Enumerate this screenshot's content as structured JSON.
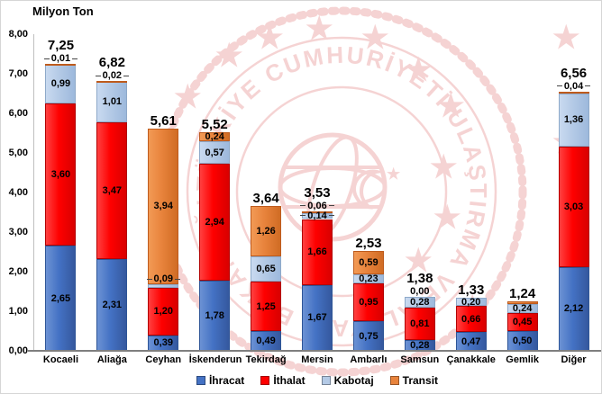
{
  "title": "Milyon Ton",
  "colors": {
    "ihracat": "#4472C4",
    "ithalat": "#FE0000",
    "kabotaj": "#B4CAE6",
    "transit": "#E8833C"
  },
  "watermark": {
    "text": "TÜRKİYE CUMHURİYETİ ULAŞTIRMA VE ALTYAPI BAKANLIĞI",
    "color": "#EDA9A9"
  },
  "y_axis": {
    "min": 0,
    "max": 8,
    "step": 1,
    "tick_labels": [
      "0,00",
      "1,00",
      "2,00",
      "3,00",
      "4,00",
      "5,00",
      "6,00",
      "7,00",
      "8,00"
    ]
  },
  "legend": [
    {
      "key": "ihracat",
      "label": "İhracat"
    },
    {
      "key": "ithalat",
      "label": "İthalat"
    },
    {
      "key": "kabotaj",
      "label": "Kabotaj"
    },
    {
      "key": "transit",
      "label": "Transit"
    }
  ],
  "chart_data": {
    "type": "bar",
    "stacked": true,
    "title": "Milyon Ton",
    "ylabel": "Milyon Ton",
    "ylim": [
      0,
      8
    ],
    "grid": false,
    "legend_position": "bottom",
    "categories": [
      "Kocaeli",
      "Aliağa",
      "Ceyhan",
      "İskenderun",
      "Tekirdağ",
      "Mersin",
      "Ambarlı",
      "Samsun",
      "Çanakkale",
      "Gemlik",
      "Diğer"
    ],
    "series": [
      {
        "name": "İhracat",
        "key": "ihracat",
        "values": [
          2.65,
          2.31,
          0.39,
          1.78,
          0.49,
          1.67,
          0.75,
          0.28,
          0.47,
          0.5,
          2.12
        ],
        "labels": [
          "2,65",
          "2,31",
          "0,39",
          "1,78",
          "0,49",
          "1,67",
          "0,75",
          "0,28",
          "0,47",
          "0,50",
          "2,12"
        ]
      },
      {
        "name": "İthalat",
        "key": "ithalat",
        "values": [
          3.6,
          3.47,
          1.2,
          2.94,
          1.25,
          1.66,
          0.95,
          0.81,
          0.66,
          0.45,
          3.03
        ],
        "labels": [
          "3,60",
          "3,47",
          "1,20",
          "2,94",
          "1,25",
          "1,66",
          "0,95",
          "0,81",
          "0,66",
          "0,45",
          "3,03"
        ]
      },
      {
        "name": "Kabotaj",
        "key": "kabotaj",
        "values": [
          0.99,
          1.01,
          0.09,
          0.57,
          0.65,
          0.14,
          0.23,
          0.28,
          0.2,
          0.24,
          1.36
        ],
        "labels": [
          "0,99",
          "1,01",
          "0,09",
          "0,57",
          "0,65",
          "0,14",
          "0,23",
          "0,28",
          "0,20",
          "0,24",
          "1,36"
        ]
      },
      {
        "name": "Transit",
        "key": "transit",
        "values": [
          0.01,
          0.02,
          3.94,
          0.24,
          1.26,
          0.06,
          0.59,
          0.0,
          0,
          0.05,
          0.04
        ],
        "labels": [
          "0,01",
          "0,02",
          "3,94",
          "0,24",
          "1,26",
          "0,06",
          "0,59",
          "0,00",
          "",
          "",
          "0,04"
        ]
      }
    ],
    "totals": [
      "7,25",
      "6,82",
      "5,61",
      "5,52",
      "3,64",
      "3,53",
      "2,53",
      "1,38",
      "1,33",
      "1,24",
      "6,56"
    ],
    "total_values": [
      7.25,
      6.82,
      5.61,
      5.52,
      3.64,
      3.53,
      2.53,
      1.38,
      1.33,
      1.24,
      6.56
    ]
  }
}
